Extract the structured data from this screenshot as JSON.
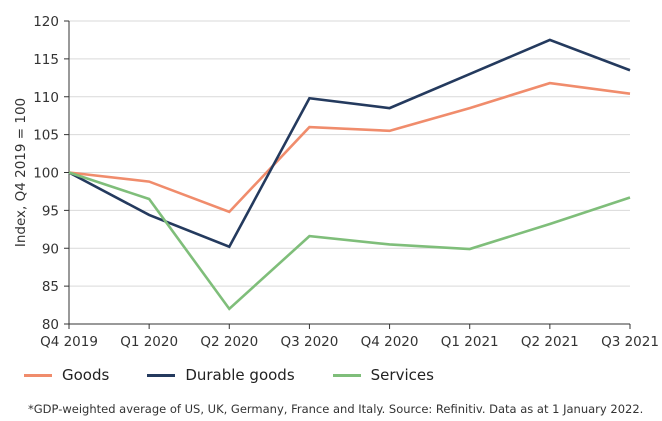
{
  "chart_data": {
    "type": "line",
    "title": "",
    "ylabel": "Index, Q4 2019 = 100",
    "xlabel": "",
    "categories": [
      "Q4 2019",
      "Q1 2020",
      "Q2 2020",
      "Q3 2020",
      "Q4 2020",
      "Q1 2021",
      "Q2 2021",
      "Q3 2021"
    ],
    "ylim": [
      80,
      120
    ],
    "yticks": [
      80,
      85,
      90,
      95,
      100,
      105,
      110,
      115,
      120
    ],
    "grid": "horizontal",
    "legend_position": "bottom-left",
    "series": [
      {
        "name": "Goods",
        "color": "#f08c6c",
        "values": [
          100,
          98.8,
          94.8,
          106.0,
          105.5,
          108.5,
          111.8,
          110.4
        ]
      },
      {
        "name": "Durable goods",
        "color": "#243a5e",
        "values": [
          100,
          94.4,
          90.2,
          109.8,
          108.5,
          113.0,
          117.5,
          113.5
        ]
      },
      {
        "name": "Services",
        "color": "#7fbe7a",
        "values": [
          100,
          96.5,
          82.0,
          91.6,
          90.5,
          89.9,
          93.2,
          96.7
        ]
      }
    ],
    "footnote": "*GDP-weighted average of US, UK, Germany, France and Italy. Source: Refinitiv. Data as at 1 January 2022."
  }
}
